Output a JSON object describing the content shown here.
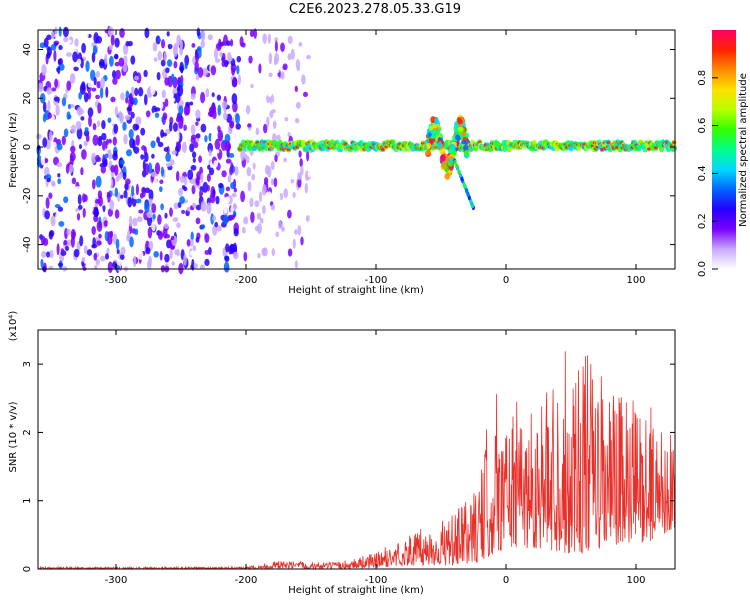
{
  "title": "C2E6.2023.278.05.33.G19",
  "chart_data": [
    {
      "type": "heatmap",
      "xlabel": "Height of straight line (km)",
      "ylabel": "Frequency (Hz)",
      "xlim": [
        -360,
        130
      ],
      "ylim": [
        -50,
        48
      ],
      "xticks": [
        -300,
        -200,
        -100,
        0,
        100
      ],
      "yticks": [
        -40,
        -20,
        0,
        20,
        40
      ],
      "colorbar": {
        "label": "Normalized spectral amplitude",
        "range": [
          0.0,
          1.0
        ],
        "ticks": [
          0.0,
          0.2,
          0.4,
          0.6,
          0.8
        ],
        "colormap": [
          "#ffffff",
          "#c9a8ff",
          "#7a00ff",
          "#2400ff",
          "#0066ff",
          "#00d8ff",
          "#00ff88",
          "#33ff00",
          "#b8ff00",
          "#ffe000",
          "#ff8a00",
          "#ff2200",
          "#ff0066"
        ]
      },
      "regions": [
        {
          "x": [
            -360,
            -205
          ],
          "freq": [
            -50,
            48
          ],
          "amplitude": 0.3,
          "kind": "scattered noise"
        },
        {
          "x": [
            -205,
            -150
          ],
          "freq": [
            -50,
            48
          ],
          "amplitude": 0.15,
          "kind": "sparse noise"
        },
        {
          "x": [
            -205,
            130
          ],
          "freq": [
            -3,
            4
          ],
          "amplitude": 0.85,
          "kind": "carrier line"
        },
        {
          "x": [
            -60,
            -30
          ],
          "freq": [
            -12,
            11
          ],
          "amplitude": 0.7,
          "kind": "disturbance"
        },
        {
          "x": [
            -40,
            -25
          ],
          "freq": [
            -25,
            -5
          ],
          "amplitude": 0.4,
          "kind": "descending branch"
        }
      ]
    },
    {
      "type": "line",
      "xlabel": "Height of straight line (km)",
      "ylabel": "SNR (10 * v/v)",
      "y_multiplier": "(x10⁴)",
      "xlim": [
        -360,
        130
      ],
      "ylim": [
        0,
        3.5
      ],
      "xticks": [
        -300,
        -200,
        -100,
        0,
        100
      ],
      "yticks": [
        0,
        1,
        2,
        3
      ],
      "color": "#e8302a",
      "envelope": [
        {
          "x": -360,
          "low": 0.0,
          "high": 0.03
        },
        {
          "x": -200,
          "low": 0.0,
          "high": 0.03
        },
        {
          "x": -180,
          "low": 0.0,
          "high": 0.12
        },
        {
          "x": -130,
          "low": 0.0,
          "high": 0.1
        },
        {
          "x": -100,
          "low": 0.02,
          "high": 0.25
        },
        {
          "x": -70,
          "low": 0.05,
          "high": 0.55
        },
        {
          "x": -40,
          "low": 0.05,
          "high": 0.8
        },
        {
          "x": -20,
          "low": 0.1,
          "high": 1.3
        },
        {
          "x": -10,
          "low": 0.2,
          "high": 2.8
        },
        {
          "x": 0,
          "low": 0.3,
          "high": 2.4
        },
        {
          "x": 30,
          "low": 0.3,
          "high": 2.6
        },
        {
          "x": 50,
          "low": 0.2,
          "high": 3.5
        },
        {
          "x": 80,
          "low": 0.3,
          "high": 2.7
        },
        {
          "x": 110,
          "low": 0.4,
          "high": 2.4
        },
        {
          "x": 130,
          "low": 0.6,
          "high": 2.0
        }
      ]
    }
  ]
}
